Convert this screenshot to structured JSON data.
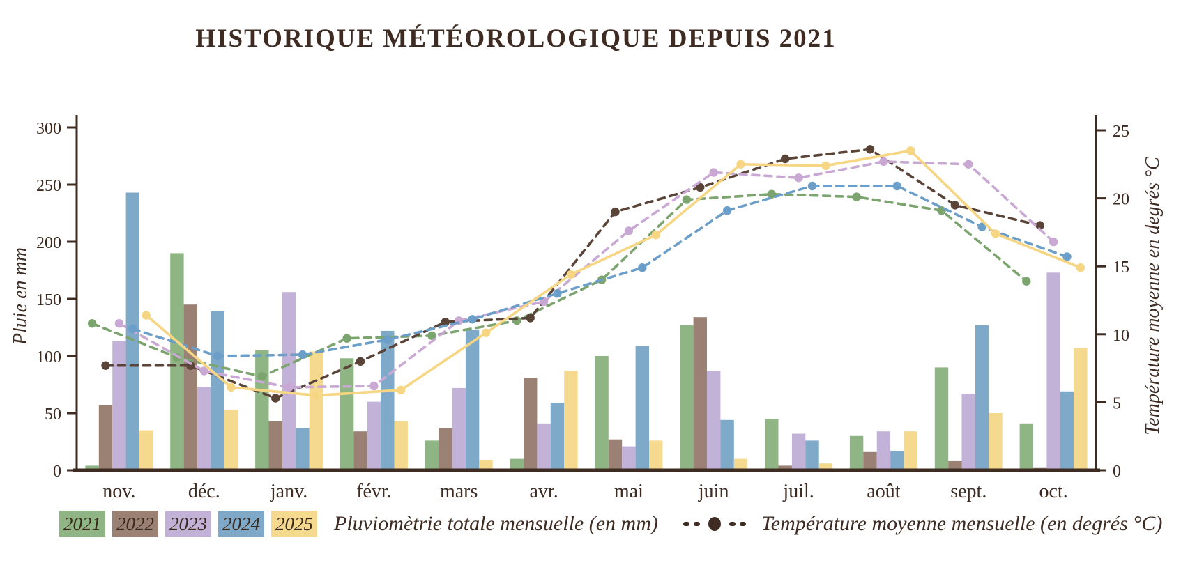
{
  "title": "HISTORIQUE MÉTÉOROLOGIQUE DEPUIS 2021",
  "axes": {
    "left_label": "Pluie en mm",
    "right_label": "Température moyenne en degrés °C",
    "left_ticks": [
      0,
      50,
      100,
      150,
      200,
      250,
      300
    ],
    "right_ticks": [
      0,
      5,
      10,
      15,
      20,
      25
    ],
    "axis_color": "#3E2B22"
  },
  "legend": {
    "rain_label": "Pluviomètrie totale mensuelle (en mm)",
    "temp_label": "Température moyenne mensuelle (en degrés °C)",
    "marker_color": "#3E2B22"
  },
  "chart_data": {
    "type": "bar+line",
    "title": "HISTORIQUE MÉTÉOROLOGIQUE DEPUIS 2021",
    "categories": [
      "nov.",
      "déc.",
      "janv.",
      "févr.",
      "mars",
      "avr.",
      "mai",
      "juin",
      "juil.",
      "août",
      "sept.",
      "oct."
    ],
    "bar_ylabel": "Pluie en mm",
    "bar_ylim": [
      0,
      300
    ],
    "line_ylabel": "Température moyenne en degrés °C",
    "line_ylim": [
      0,
      25
    ],
    "grid": false,
    "legend_position": "bottom",
    "series": [
      {
        "name": "2021",
        "bar_color": "#8FB584",
        "line_color": "#7CA46E",
        "rain_mm": [
          4,
          190,
          105,
          98,
          26,
          10,
          100,
          127,
          45,
          30,
          90,
          41
        ],
        "temp_c": [
          10.8,
          8.3,
          6.9,
          9.7,
          9.9,
          11.0,
          14.0,
          19.9,
          20.3,
          20.1,
          19.1,
          13.9
        ]
      },
      {
        "name": "2022",
        "bar_color": "#9A8173",
        "line_color": "#5A4438",
        "rain_mm": [
          57,
          145,
          43,
          34,
          37,
          81,
          27,
          134,
          4,
          16,
          8,
          2
        ],
        "temp_c": [
          7.7,
          7.7,
          5.3,
          8.0,
          10.9,
          11.2,
          19.0,
          20.8,
          22.9,
          23.6,
          19.5,
          18.0
        ]
      },
      {
        "name": "2023",
        "bar_color": "#C3B2D7",
        "line_color": "#C9A9D4",
        "rain_mm": [
          113,
          73,
          156,
          60,
          72,
          41,
          21,
          87,
          32,
          34,
          67,
          173
        ],
        "temp_c": [
          10.8,
          7.3,
          6.1,
          6.2,
          11.0,
          12.4,
          17.6,
          21.9,
          21.5,
          22.7,
          22.5,
          16.8
        ]
      },
      {
        "name": "2024",
        "bar_color": "#7FA9C9",
        "line_color": "#6B9EC8",
        "rain_mm": [
          243,
          139,
          37,
          122,
          123,
          59,
          109,
          44,
          26,
          17,
          127,
          69
        ],
        "temp_c": [
          10.4,
          8.4,
          8.5,
          9.6,
          11.1,
          13.0,
          14.9,
          19.1,
          20.9,
          20.9,
          17.9,
          15.7
        ]
      },
      {
        "name": "2025",
        "bar_color": "#F5D98F",
        "line_color": "#F6D683",
        "line_style": "solid",
        "rain_mm": [
          35,
          53,
          104,
          43,
          9,
          87,
          26,
          10,
          6,
          34,
          50,
          107
        ],
        "temp_c": [
          11.4,
          6.1,
          5.5,
          5.9,
          10.1,
          14.4,
          17.3,
          22.5,
          22.4,
          23.5,
          17.4,
          14.9
        ]
      }
    ]
  }
}
